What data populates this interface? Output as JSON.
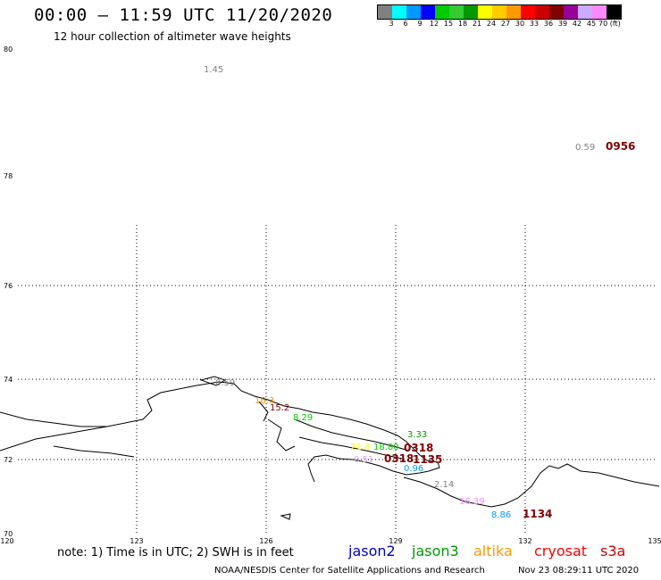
{
  "header": {
    "title": "00:00 – 11:59 UTC 11/20/2020",
    "subtitle": "12 hour collection of altimeter wave heights"
  },
  "scale": {
    "colors": [
      "#808080",
      "#00ffff",
      "#0099ff",
      "#0000ff",
      "#00cc00",
      "#33cc33",
      "#009900",
      "#ffff00",
      "#ffcc00",
      "#ff9900",
      "#ff0000",
      "#cc0000",
      "#800000",
      "#990099",
      "#ccaaff",
      "#ff88ff",
      "#000000"
    ],
    "labels": [
      "3",
      "6",
      "9",
      "12",
      "15",
      "18",
      "21",
      "24",
      "27",
      "30",
      "33",
      "36",
      "39",
      "42",
      "45",
      "70 (ft)"
    ]
  },
  "map": {
    "lat_labels": [
      "80",
      "78",
      "76",
      "74",
      "72",
      "70"
    ],
    "lon_labels": [
      "120",
      "123",
      "126",
      "129",
      "132",
      "135"
    ],
    "observations": [
      {
        "text": "1.45",
        "color": "#808080"
      },
      {
        "text": "0.59",
        "color": "#808080"
      },
      {
        "text": "0956",
        "color": "#800000"
      },
      {
        "text": "0.59",
        "color": "#808080"
      },
      {
        "text": "16.3",
        "color": "#ff9900"
      },
      {
        "text": "15.2",
        "color": "#800000"
      },
      {
        "text": "8.29",
        "color": "#00cc00"
      },
      {
        "text": "3.33",
        "color": "#009900"
      },
      {
        "text": "21.4",
        "color": "#ffff00"
      },
      {
        "text": "18.80",
        "color": "#00cc00"
      },
      {
        "text": "0318",
        "color": "#800000"
      },
      {
        "text": "0.51",
        "color": "#ccaaff"
      },
      {
        "text": "0318",
        "color": "#800000"
      },
      {
        "text": "1135",
        "color": "#800000"
      },
      {
        "text": "0.96",
        "color": "#0099ff"
      },
      {
        "text": "2.14",
        "color": "#808080"
      },
      {
        "text": "16.39",
        "color": "#ff88ff"
      },
      {
        "text": "8.86",
        "color": "#0099ff"
      },
      {
        "text": "1134",
        "color": "#800000"
      }
    ]
  },
  "footer": {
    "note": "note: 1) Time is in UTC; 2) SWH is in feet",
    "satellites": [
      {
        "name": "jason2",
        "color": "#0000cc"
      },
      {
        "name": "jason3",
        "color": "#009900"
      },
      {
        "name": "altika",
        "color": "#ff9900"
      },
      {
        "name": "cryosat",
        "color": "#ff0000"
      },
      {
        "name": "s3a",
        "color": "#cc0000"
      }
    ],
    "credit": "NOAA/NESDIS Center for Satellite Applications and Research",
    "timestamp": "Nov 23 08:29:11 UTC 2020"
  }
}
